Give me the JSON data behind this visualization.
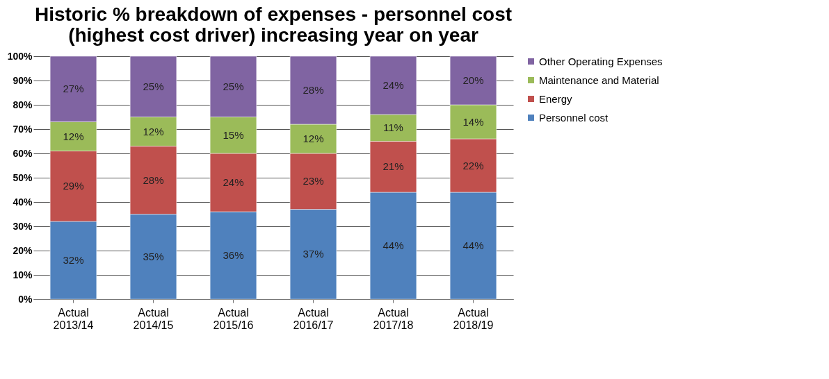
{
  "chart_data": {
    "type": "bar",
    "title": "Historic % breakdown of expenses - personnel cost\n(highest cost driver) increasing year on year",
    "categories": [
      "Actual 2013/14",
      "Actual 2014/15",
      "Actual 2015/16",
      "Actual 2016/17",
      "Actual 2017/18",
      "Actual 2018/19"
    ],
    "stacked": true,
    "series": [
      {
        "name": "Personnel cost",
        "color": "#4f81bd",
        "values": [
          32,
          35,
          36,
          37,
          44,
          44
        ],
        "value_labels": [
          "32%",
          "35%",
          "36%",
          "37%",
          "44%",
          "44%"
        ]
      },
      {
        "name": "Energy",
        "color": "#c0504d",
        "values": [
          29,
          28,
          24,
          23,
          21,
          22
        ],
        "value_labels": [
          "29%",
          "28%",
          "24%",
          "23%",
          "21%",
          "22%"
        ]
      },
      {
        "name": "Maintenance and Material",
        "color": "#9bbb59",
        "values": [
          12,
          12,
          15,
          12,
          11,
          14
        ],
        "value_labels": [
          "12%",
          "12%",
          "15%",
          "12%",
          "11%",
          "14%"
        ]
      },
      {
        "name": "Other Operating Expenses",
        "color": "#8064a2",
        "values": [
          27,
          25,
          25,
          28,
          24,
          20
        ],
        "value_labels": [
          "27%",
          "25%",
          "25%",
          "28%",
          "24%",
          "20%"
        ]
      }
    ],
    "ylim": [
      0,
      100
    ],
    "yticks": [
      {
        "value": 0,
        "label": "0%"
      },
      {
        "value": 10,
        "label": "10%"
      },
      {
        "value": 20,
        "label": "20%"
      },
      {
        "value": 30,
        "label": "30%"
      },
      {
        "value": 40,
        "label": "40%"
      },
      {
        "value": 50,
        "label": "50%"
      },
      {
        "value": 60,
        "label": "60%"
      },
      {
        "value": 70,
        "label": "70%"
      },
      {
        "value": 80,
        "label": "80%"
      },
      {
        "value": 90,
        "label": "90%"
      },
      {
        "value": 100,
        "label": "100%"
      }
    ],
    "grid": "y",
    "legend": "right"
  }
}
